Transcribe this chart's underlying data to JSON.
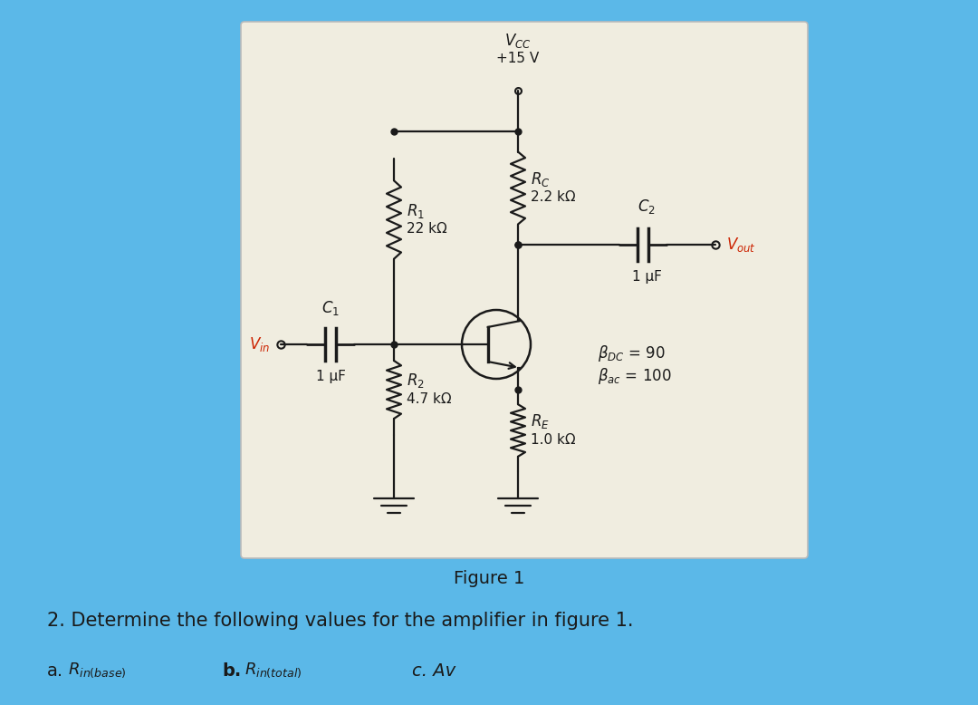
{
  "bg_color": "#5bb8e8",
  "box_color": "#f5f2ea",
  "box_facecolor": "#f0ede0",
  "fig_width": 10.8,
  "fig_height": 7.78,
  "dpi": 100,
  "vcc_text": "$V_{CC}$",
  "vcc_val": "+15 V",
  "r1_label": "$R_1$",
  "r1_val": "22 kΩ",
  "r2_label": "$R_2$",
  "r2_val": "4.7 kΩ",
  "rc_label": "$R_C$",
  "rc_val": "2.2 kΩ",
  "re_label": "$R_E$",
  "re_val": "1.0 kΩ",
  "c1_label": "$C_1$",
  "c1_val": "1 μF",
  "c2_label": "$C_2$",
  "c2_val": "1 μF",
  "beta_dc_text": "$\\beta_{DC}$ = 90",
  "beta_ac_text": "$\\beta_{ac}$ = 100",
  "vin_text": "$V_{in}$",
  "vout_text": "$V_{out}$",
  "fig1_label": "Figure 1",
  "q_text": "2. Determine the following values for the amplifier in figure 1.",
  "item_a": "a.",
  "item_a_sub": "$R_{in(base)}$",
  "item_b": "b.",
  "item_b_sub": "$R_{in(total)}$",
  "item_c": "c. Av",
  "line_color": "#1a1a1a",
  "dot_color": "#1a1a1a",
  "text_color": "#1a1a1a",
  "red_color": "#cc2200",
  "lw": 1.6
}
